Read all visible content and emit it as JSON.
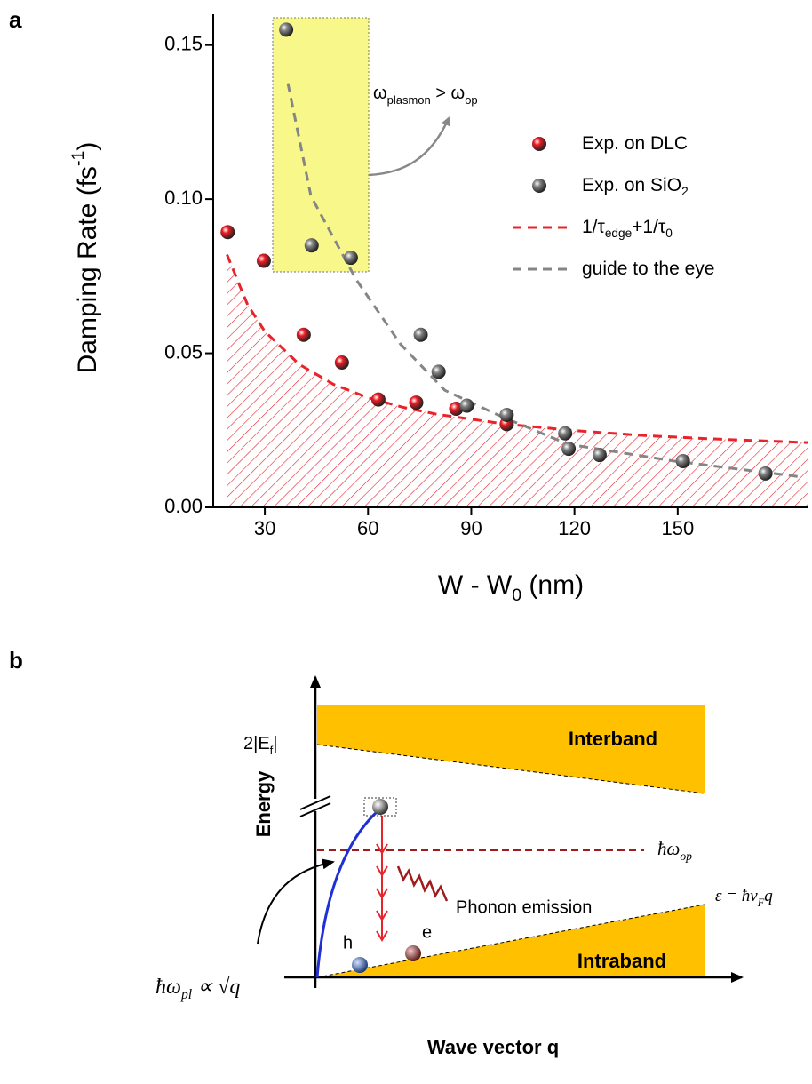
{
  "panel_labels": [
    "a",
    "b"
  ],
  "chart_data": {
    "type": "scatter",
    "xlabel": [
      {
        "text": "W - W"
      },
      {
        "sub": "0"
      },
      {
        "text": " (nm)"
      }
    ],
    "ylabel": [
      {
        "text": "Damping Rate (fs"
      },
      {
        "sup": "-1"
      },
      {
        "text": ")"
      }
    ],
    "xlim": [
      15,
      188
    ],
    "ylim": [
      0,
      0.16
    ],
    "xticks": [
      30,
      60,
      90,
      120,
      150
    ],
    "yticks": [
      {
        "value": 0,
        "label": "0.00"
      },
      0.05,
      {
        "value": 0.1,
        "label": "0.10"
      },
      0.15
    ],
    "legend": "upper right",
    "annotation": [
      {
        "text": "ω"
      },
      {
        "sub": "plasmon"
      },
      {
        "text": " > ω"
      },
      {
        "sub": "op"
      }
    ],
    "series": [
      {
        "name": [
          {
            "text": "Exp. on DLC"
          }
        ],
        "type": "scatter",
        "color": "#ee1c24",
        "x": [
          19.2,
          29.7,
          41.3,
          52.4,
          63,
          74,
          85.6,
          100.3
        ],
        "values": [
          0.0893,
          0.08,
          0.056,
          0.047,
          0.035,
          0.034,
          0.032,
          0.027
        ]
      },
      {
        "name": [
          {
            "text": "Exp. on SiO"
          },
          {
            "sub": "2"
          }
        ],
        "type": "scatter",
        "color": "#858585",
        "x": [
          36.2,
          43.6,
          55,
          75.3,
          80.5,
          88.7,
          100.3,
          117.3,
          118.3,
          127.3,
          151.5,
          175.5
        ],
        "values": [
          0.155,
          0.085,
          0.081,
          0.056,
          0.044,
          0.033,
          0.03,
          0.024,
          0.019,
          0.017,
          0.015,
          0.011
        ]
      },
      {
        "name": [
          {
            "text": "1/τ"
          },
          {
            "sub": "edge"
          },
          {
            "text": "+1/τ"
          },
          {
            "sub": "0"
          }
        ],
        "type": "line",
        "dashed": true,
        "fill": "hatch",
        "color": "#e8232a",
        "x": [
          19,
          25,
          30,
          40,
          50,
          60,
          70,
          80,
          100,
          120,
          140,
          160,
          188
        ],
        "values": [
          0.082,
          0.0657,
          0.0571,
          0.0464,
          0.0399,
          0.0356,
          0.0325,
          0.0302,
          0.027,
          0.0249,
          0.0233,
          0.0222,
          0.021
        ]
      },
      {
        "name": [
          {
            "text": "guide to the eye"
          }
        ],
        "type": "line",
        "dashed": true,
        "color": "#858585",
        "x": [
          36.7,
          43.4,
          56.5,
          69.4,
          82.3,
          97.7,
          118,
          149,
          185
        ],
        "values": [
          0.1376,
          0.101,
          0.074,
          0.053,
          0.038,
          0.03,
          0.0205,
          0.015,
          0.01
        ]
      }
    ]
  },
  "diagram": {
    "labels": {
      "fermi": [
        {
          "text": "2|E"
        },
        {
          "sub": "f"
        },
        {
          "text": "|"
        }
      ],
      "interband": "Interband",
      "energy": "Energy",
      "phonon_energy": [
        {
          "text": "ħω"
        },
        {
          "sub": "op"
        }
      ],
      "phonon_emission": "Phonon emission",
      "dispersion": [
        {
          "text": "ε = ħv"
        },
        {
          "sub": "F"
        },
        {
          "text": "q"
        }
      ],
      "plasmon": [
        {
          "text": "ħω"
        },
        {
          "sub": "pl"
        },
        {
          "text": " ∝ √q"
        }
      ],
      "hole": "h",
      "electron": "e",
      "intraband": "Intraband",
      "xaxis": "Wave vector q"
    }
  }
}
